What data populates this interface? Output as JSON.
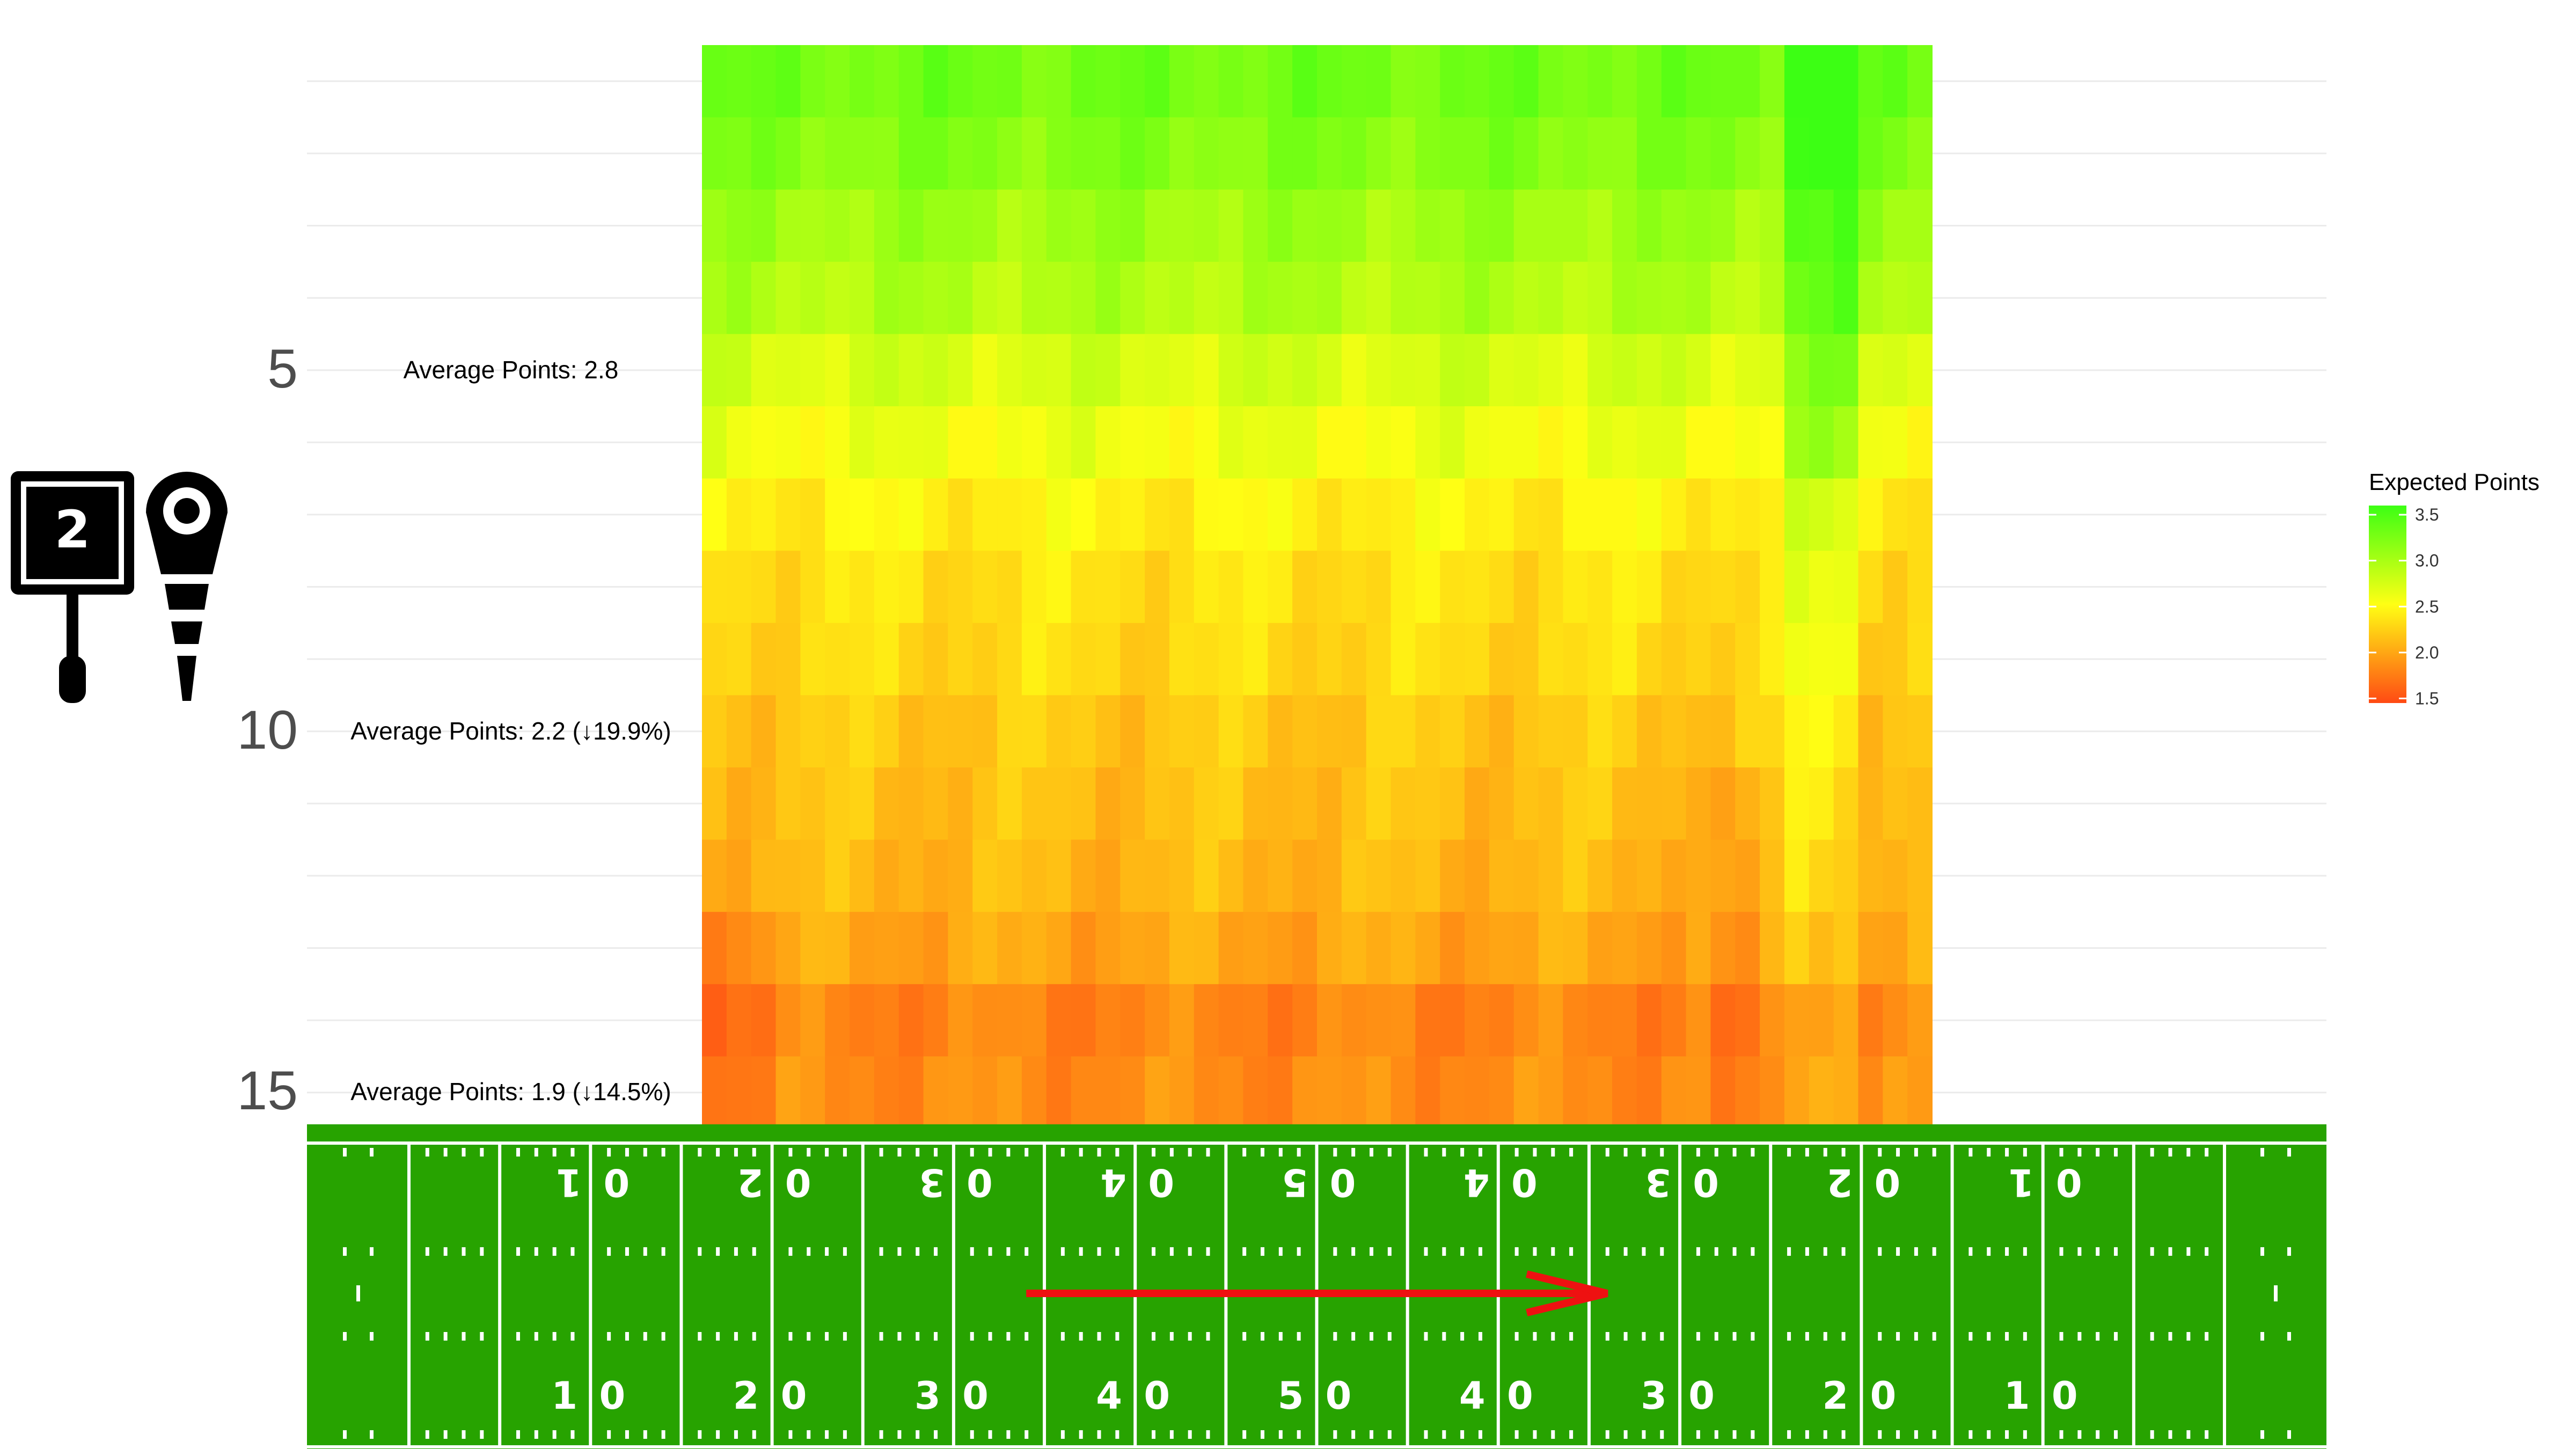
{
  "chart_data": {
    "type": "heatmap",
    "title": "",
    "xlabel": "",
    "ylabel": "",
    "y_ticks": [
      "5",
      "10",
      "15"
    ],
    "y_tick_values": [
      5,
      10,
      15
    ],
    "ylim": [
      0,
      15
    ],
    "rows_per_tick": 5,
    "x_range_yardline": [
      0,
      100
    ],
    "row_values": [
      3.3,
      3.2,
      3.05,
      2.95,
      2.75,
      2.6,
      2.45,
      2.35,
      2.3,
      2.2,
      2.15,
      2.1,
      2.0,
      1.8,
      1.85,
      1.9
    ],
    "annotations": [
      {
        "y": 5,
        "label": "Average Points: 2.8"
      },
      {
        "y": 10,
        "label": "Average Points: 2.2 (↓19.9%)"
      },
      {
        "y": 15,
        "label": "Average Points: 1.9 (↓14.5%)"
      }
    ],
    "legend": {
      "title": "Expected Points",
      "ticks": [
        "3.5",
        "3.0",
        "2.5",
        "2.0",
        "1.5"
      ],
      "tick_values": [
        3.5,
        3.0,
        2.5,
        2.0,
        1.5
      ],
      "range": [
        1.45,
        3.6
      ],
      "colors": [
        "#ff4a14",
        "#ffff14",
        "#3cff14"
      ],
      "placement": "right"
    },
    "grid": true
  },
  "down_marker": {
    "down": "2",
    "icon": "down-box-and-chain-icon"
  },
  "field": {
    "top_numbers": [
      "0 1",
      "0 2",
      "0 3",
      "0 4",
      "0 5",
      "0 4",
      "0 3",
      "0 2",
      "0 1"
    ],
    "bottom_numbers": [
      "1 0",
      "2 0",
      "3 0",
      "4 0",
      "5 0",
      "4 0",
      "3 0",
      "2 0",
      "1 0"
    ],
    "arrow": {
      "from_yardline": 34,
      "to_yardline": 66,
      "color": "#ee1111"
    },
    "turf_color": "#27a300"
  }
}
